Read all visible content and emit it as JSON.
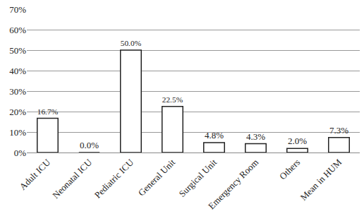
{
  "chart_data": {
    "type": "bar",
    "categories": [
      "Adult ICU",
      "Neonatal ICU",
      "Pediatric ICU",
      "General Unit",
      "Surgical Unit",
      "Emergency Room",
      "Others",
      "Mean in HUM"
    ],
    "values": [
      16.7,
      0.0,
      50.0,
      22.5,
      4.8,
      4.3,
      2.0,
      7.3
    ],
    "value_labels": [
      "16.7%",
      "0.0%",
      "50.0%",
      "22.5%",
      "4.8%",
      "4.3%",
      "2.0%",
      "7.3%"
    ],
    "data_labels": true,
    "color": "#ffffff",
    "ylim": [
      0,
      70
    ],
    "yticks": [
      {
        "value": 0,
        "label": "0%"
      },
      {
        "value": 10,
        "label": "10%"
      },
      {
        "value": 20,
        "label": "20%"
      },
      {
        "value": 30,
        "label": "30%"
      },
      {
        "value": 40,
        "label": "40%"
      },
      {
        "value": 50,
        "label": "50%"
      },
      {
        "value": 60,
        "label": "60%"
      },
      {
        "value": 70,
        "label": "70%"
      }
    ],
    "grid": true
  }
}
